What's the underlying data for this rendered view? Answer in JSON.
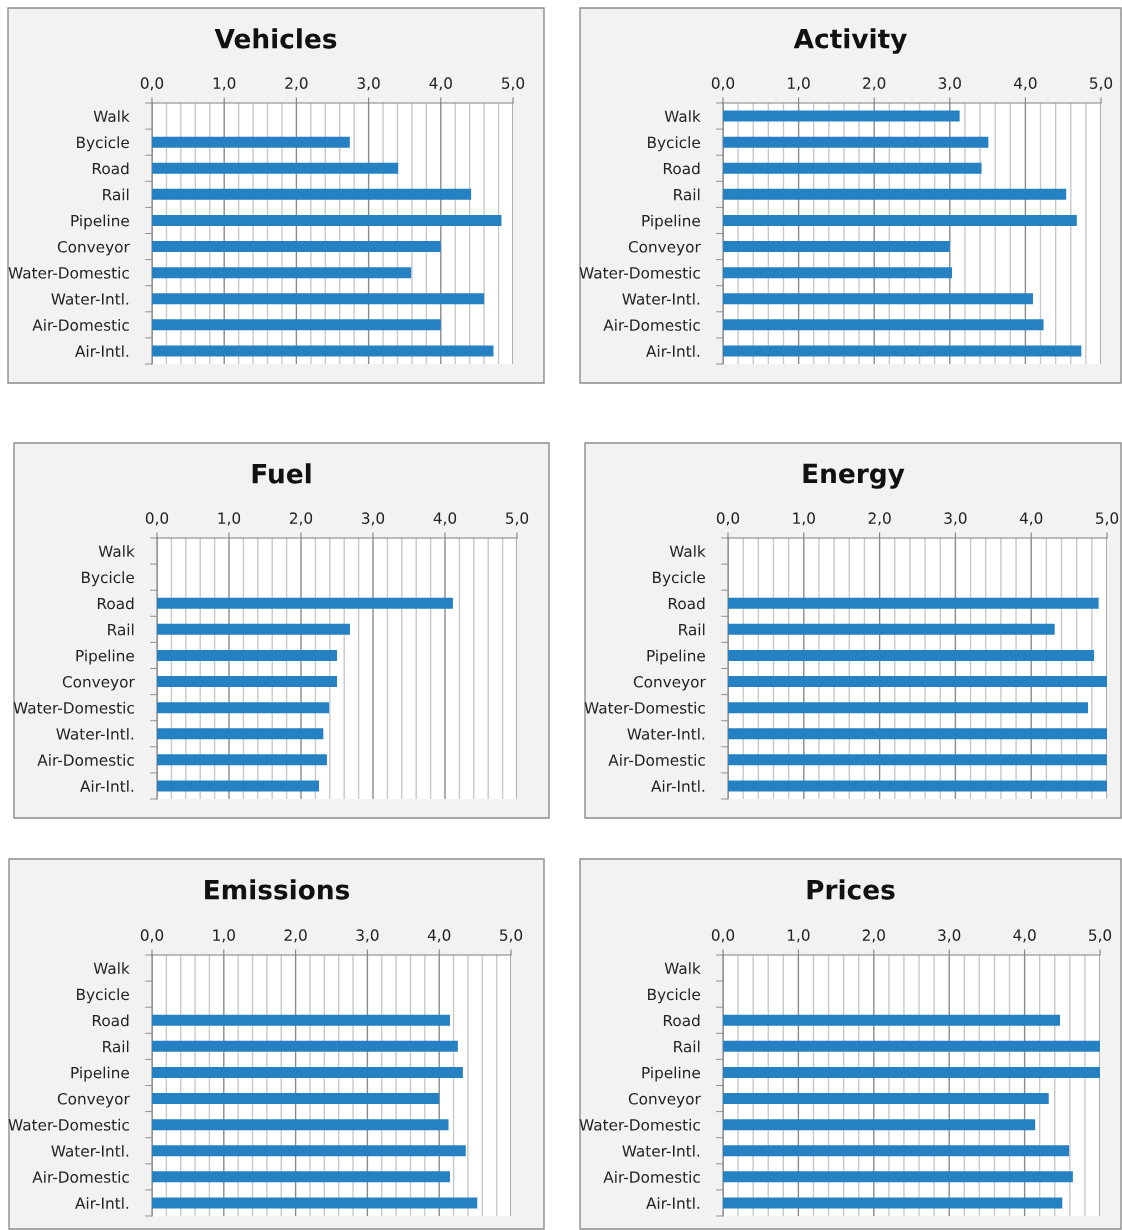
{
  "chart_data": [
    {
      "type": "bar",
      "orientation": "horizontal",
      "title": "Vehicles",
      "categories": [
        "Walk",
        "Bycicle",
        "Road",
        "Rail",
        "Pipeline",
        "Conveyor",
        "Water-Domestic",
        "Water-Intl.",
        "Air-Domestic",
        "Air-Intl."
      ],
      "values": [
        null,
        2.74,
        3.41,
        4.42,
        4.84,
        4.0,
        3.59,
        4.6,
        4.0,
        4.73
      ],
      "color": "#2681c2",
      "xlim": [
        0,
        5
      ],
      "xticks": [
        {
          "value": 0,
          "label": "0,0"
        },
        {
          "value": 1,
          "label": "1,0"
        },
        {
          "value": 2,
          "label": "2,0"
        },
        {
          "value": 3,
          "label": "3,0"
        },
        {
          "value": 4,
          "label": "4,0"
        },
        {
          "value": 5,
          "label": "5,0"
        }
      ],
      "grid": "x",
      "legend": false
    },
    {
      "type": "bar",
      "orientation": "horizontal",
      "title": "Activity",
      "categories": [
        "Walk",
        "Bycicle",
        "Road",
        "Rail",
        "Pipeline",
        "Conveyor",
        "Water-Domestic",
        "Water-Intl.",
        "Air-Domestic",
        "Air-Intl."
      ],
      "values": [
        3.13,
        3.51,
        3.42,
        4.54,
        4.68,
        3.0,
        3.03,
        4.1,
        4.24,
        4.74
      ],
      "color": "#2681c2",
      "xlim": [
        0,
        5
      ],
      "xticks": [
        {
          "value": 0,
          "label": "0,0"
        },
        {
          "value": 1,
          "label": "1,0"
        },
        {
          "value": 2,
          "label": "2,0"
        },
        {
          "value": 3,
          "label": "3,0"
        },
        {
          "value": 4,
          "label": "4,0"
        },
        {
          "value": 5,
          "label": "5,0"
        }
      ],
      "grid": "x",
      "legend": false
    },
    {
      "type": "bar",
      "orientation": "horizontal",
      "title": "Fuel",
      "categories": [
        "Walk",
        "Bycicle",
        "Road",
        "Rail",
        "Pipeline",
        "Conveyor",
        "Water-Domestic",
        "Water-Intl.",
        "Air-Domestic",
        "Air-Intl."
      ],
      "values": [
        null,
        null,
        4.11,
        2.68,
        2.5,
        2.5,
        2.39,
        2.31,
        2.36,
        2.25
      ],
      "color": "#2681c2",
      "xlim": [
        0,
        5
      ],
      "xticks": [
        {
          "value": 0,
          "label": "0,0"
        },
        {
          "value": 1,
          "label": "1,0"
        },
        {
          "value": 2,
          "label": "2,0"
        },
        {
          "value": 3,
          "label": "3,0"
        },
        {
          "value": 4,
          "label": "4,0"
        },
        {
          "value": 5,
          "label": "5,0"
        }
      ],
      "grid": "x",
      "legend": false
    },
    {
      "type": "bar",
      "orientation": "horizontal",
      "title": "Energy",
      "categories": [
        "Walk",
        "Bycicle",
        "Road",
        "Rail",
        "Pipeline",
        "Conveyor",
        "Water-Domestic",
        "Water-Intl.",
        "Air-Domestic",
        "Air-Intl."
      ],
      "values": [
        null,
        null,
        4.89,
        4.31,
        4.83,
        5.0,
        4.75,
        5.0,
        5.0,
        5.0
      ],
      "color": "#2681c2",
      "xlim": [
        0,
        5
      ],
      "xticks": [
        {
          "value": 0,
          "label": "0,0"
        },
        {
          "value": 1,
          "label": "1,0"
        },
        {
          "value": 2,
          "label": "2,0"
        },
        {
          "value": 3,
          "label": "3,0"
        },
        {
          "value": 4,
          "label": "4,0"
        },
        {
          "value": 5,
          "label": "5,0"
        }
      ],
      "grid": "x",
      "legend": false
    },
    {
      "type": "bar",
      "orientation": "horizontal",
      "title": "Emissions",
      "categories": [
        "Walk",
        "Bycicle",
        "Road",
        "Rail",
        "Pipeline",
        "Conveyor",
        "Water-Domestic",
        "Water-Intl.",
        "Air-Domestic",
        "Air-Intl."
      ],
      "values": [
        null,
        null,
        4.15,
        4.26,
        4.33,
        4.0,
        4.13,
        4.37,
        4.15,
        4.53
      ],
      "color": "#2681c2",
      "xlim": [
        0,
        5
      ],
      "xticks": [
        {
          "value": 0,
          "label": "0,0"
        },
        {
          "value": 1,
          "label": "1,0"
        },
        {
          "value": 2,
          "label": "2,0"
        },
        {
          "value": 3,
          "label": "3,0"
        },
        {
          "value": 4,
          "label": "4,0"
        },
        {
          "value": 5,
          "label": "5,0"
        }
      ],
      "grid": "x",
      "legend": false
    },
    {
      "type": "bar",
      "orientation": "horizontal",
      "title": "Prices",
      "categories": [
        "Walk",
        "Bycicle",
        "Road",
        "Rail",
        "Pipeline",
        "Conveyor",
        "Water-Domestic",
        "Water-Intl.",
        "Air-Domestic",
        "Air-Intl."
      ],
      "values": [
        null,
        null,
        4.47,
        5.0,
        5.0,
        4.32,
        4.14,
        4.59,
        4.64,
        4.5
      ],
      "color": "#2681c2",
      "xlim": [
        0,
        5
      ],
      "xticks": [
        {
          "value": 0,
          "label": "0,0"
        },
        {
          "value": 1,
          "label": "1,0"
        },
        {
          "value": 2,
          "label": "2,0"
        },
        {
          "value": 3,
          "label": "3,0"
        },
        {
          "value": 4,
          "label": "4,0"
        },
        {
          "value": 5,
          "label": "5,0"
        }
      ],
      "grid": "x",
      "legend": false
    }
  ]
}
